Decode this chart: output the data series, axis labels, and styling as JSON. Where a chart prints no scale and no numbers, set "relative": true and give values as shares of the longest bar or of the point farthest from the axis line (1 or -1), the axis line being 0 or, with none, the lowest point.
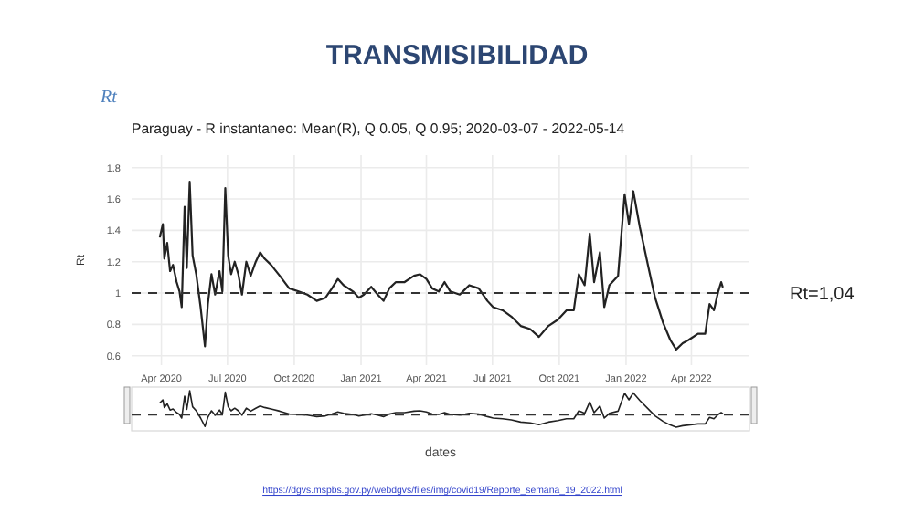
{
  "chart_data": [
    {
      "type": "line",
      "title": "TRANSMISIBILIDAD",
      "subtitle": "Paraguay - R instantaneo: Mean(R), Q 0.05, Q 0.95;  2020-03-07 - 2022-05-14",
      "xlabel": "dates",
      "ylabel": "Rt",
      "annotations": [
        "Rt",
        "Rt=1,04",
        "https://dgvs.mspbs.gov.py/webdgvs/files/img/covid19/Reporte_semana_19_2022.html"
      ],
      "xlim": [
        "2020-02-20",
        "2022-06-20"
      ],
      "ylim": [
        0.54,
        1.88
      ],
      "xticks": [
        {
          "value": "2020-04-01",
          "label": "Apr 2020"
        },
        {
          "value": "2020-07-01",
          "label": "Jul 2020"
        },
        {
          "value": "2020-10-01",
          "label": "Oct 2020"
        },
        {
          "value": "2021-01-01",
          "label": "Jan 2021"
        },
        {
          "value": "2021-04-01",
          "label": "Apr 2021"
        },
        {
          "value": "2021-07-01",
          "label": "Jul 2021"
        },
        {
          "value": "2021-10-01",
          "label": "Oct 2021"
        },
        {
          "value": "2022-01-01",
          "label": "Jan 2022"
        },
        {
          "value": "2022-04-01",
          "label": "Apr 2022"
        }
      ],
      "yticks": [
        0.6,
        0.8,
        {
          "value": 1,
          "label": "1"
        },
        1.2,
        1.4,
        1.6,
        1.8
      ],
      "grid": true,
      "marker": "none",
      "line_style": "solid",
      "ref_lines": [
        {
          "axis": "y",
          "value": 1,
          "color": "#333333",
          "line_style": "dashed"
        }
      ],
      "series": [
        {
          "color": "#222222",
          "x": [
            "2020-03-30",
            "2020-04-03",
            "2020-04-05",
            "2020-04-09",
            "2020-04-13",
            "2020-04-17",
            "2020-04-22",
            "2020-04-26",
            "2020-04-29",
            "2020-05-03",
            "2020-05-06",
            "2020-05-10",
            "2020-05-14",
            "2020-05-19",
            "2020-05-25",
            "2020-05-31",
            "2020-06-04",
            "2020-06-09",
            "2020-06-14",
            "2020-06-20",
            "2020-06-24",
            "2020-06-28",
            "2020-07-02",
            "2020-07-06",
            "2020-07-11",
            "2020-07-16",
            "2020-07-21",
            "2020-07-27",
            "2020-08-02",
            "2020-08-09",
            "2020-08-15",
            "2020-08-21",
            "2020-08-30",
            "2020-09-11",
            "2020-09-24",
            "2020-10-07",
            "2020-10-19",
            "2020-11-01",
            "2020-11-13",
            "2020-11-22",
            "2020-11-30",
            "2020-12-08",
            "2020-12-21",
            "2020-12-29",
            "2021-01-05",
            "2021-01-15",
            "2021-01-24",
            "2021-02-01",
            "2021-02-09",
            "2021-02-18",
            "2021-03-02",
            "2021-03-15",
            "2021-03-23",
            "2021-04-01",
            "2021-04-09",
            "2021-04-18",
            "2021-04-26",
            "2021-05-04",
            "2021-05-17",
            "2021-05-30",
            "2021-06-12",
            "2021-06-24",
            "2021-07-02",
            "2021-07-15",
            "2021-07-27",
            "2021-08-09",
            "2021-08-22",
            "2021-09-03",
            "2021-09-16",
            "2021-09-29",
            "2021-10-11",
            "2021-10-21",
            "2021-10-28",
            "2021-11-05",
            "2021-11-12",
            "2021-11-18",
            "2021-11-26",
            "2021-12-02",
            "2021-12-09",
            "2021-12-21",
            "2021-12-30",
            "2022-01-05",
            "2022-01-11",
            "2022-01-20",
            "2022-02-01",
            "2022-02-10",
            "2022-02-21",
            "2022-03-03",
            "2022-03-11",
            "2022-03-20",
            "2022-03-28",
            "2022-04-10",
            "2022-04-20",
            "2022-04-26",
            "2022-05-02",
            "2022-05-08",
            "2022-05-12",
            "2022-05-14"
          ],
          "values": [
            1.36,
            1.44,
            1.22,
            1.32,
            1.14,
            1.18,
            1.07,
            1.01,
            0.91,
            1.55,
            1.16,
            1.71,
            1.24,
            1.12,
            0.91,
            0.66,
            0.93,
            1.12,
            0.99,
            1.14,
            1.01,
            1.67,
            1.24,
            1.12,
            1.2,
            1.12,
            0.99,
            1.2,
            1.11,
            1.2,
            1.26,
            1.22,
            1.18,
            1.11,
            1.03,
            1.01,
            0.99,
            0.95,
            0.97,
            1.03,
            1.09,
            1.05,
            1.01,
            0.97,
            0.99,
            1.04,
            0.99,
            0.95,
            1.03,
            1.07,
            1.07,
            1.11,
            1.12,
            1.09,
            1.03,
            1.01,
            1.07,
            1.01,
            0.99,
            1.05,
            1.03,
            0.95,
            0.91,
            0.89,
            0.85,
            0.79,
            0.77,
            0.72,
            0.79,
            0.83,
            0.89,
            0.89,
            1.12,
            1.05,
            1.38,
            1.07,
            1.26,
            0.91,
            1.05,
            1.11,
            1.63,
            1.44,
            1.65,
            1.42,
            1.16,
            0.97,
            0.81,
            0.7,
            0.64,
            0.68,
            0.7,
            0.74,
            0.74,
            0.93,
            0.89,
            1.01,
            1.07,
            1.04
          ]
        }
      ]
    },
    {
      "type": "line",
      "relative": true,
      "xlim": [
        "2020-02-20",
        "2022-06-20"
      ],
      "line_style": "solid",
      "ref_lines": [
        {
          "axis": "y",
          "value": 0.34,
          "color": "#333333",
          "line_style": "dashed"
        }
      ],
      "series": [
        {
          "color": "#222222",
          "x": [
            "2020-03-30",
            "2020-04-03",
            "2020-04-05",
            "2020-04-09",
            "2020-04-13",
            "2020-04-17",
            "2020-04-22",
            "2020-04-26",
            "2020-04-29",
            "2020-05-03",
            "2020-05-06",
            "2020-05-10",
            "2020-05-14",
            "2020-05-19",
            "2020-05-25",
            "2020-05-31",
            "2020-06-04",
            "2020-06-09",
            "2020-06-14",
            "2020-06-20",
            "2020-06-24",
            "2020-06-28",
            "2020-07-02",
            "2020-07-06",
            "2020-07-11",
            "2020-07-16",
            "2020-07-21",
            "2020-07-27",
            "2020-08-02",
            "2020-08-09",
            "2020-08-15",
            "2020-08-21",
            "2020-08-30",
            "2020-09-11",
            "2020-09-24",
            "2020-10-07",
            "2020-10-19",
            "2020-11-01",
            "2020-11-13",
            "2020-11-22",
            "2020-11-30",
            "2020-12-08",
            "2020-12-21",
            "2020-12-29",
            "2021-01-05",
            "2021-01-15",
            "2021-01-24",
            "2021-02-01",
            "2021-02-09",
            "2021-02-18",
            "2021-03-02",
            "2021-03-15",
            "2021-03-23",
            "2021-04-01",
            "2021-04-09",
            "2021-04-18",
            "2021-04-26",
            "2021-05-04",
            "2021-05-17",
            "2021-05-30",
            "2021-06-12",
            "2021-06-24",
            "2021-07-02",
            "2021-07-15",
            "2021-07-27",
            "2021-08-09",
            "2021-08-22",
            "2021-09-03",
            "2021-09-16",
            "2021-09-29",
            "2021-10-11",
            "2021-10-21",
            "2021-10-28",
            "2021-11-05",
            "2021-11-12",
            "2021-11-18",
            "2021-11-26",
            "2021-12-02",
            "2021-12-09",
            "2021-12-21",
            "2021-12-30",
            "2022-01-05",
            "2022-01-11",
            "2022-01-20",
            "2022-02-01",
            "2022-02-10",
            "2022-02-21",
            "2022-03-03",
            "2022-03-11",
            "2022-03-20",
            "2022-03-28",
            "2022-04-10",
            "2022-04-20",
            "2022-04-26",
            "2022-05-02",
            "2022-05-08",
            "2022-05-12",
            "2022-05-14"
          ],
          "values": [
            0.67,
            0.75,
            0.54,
            0.64,
            0.47,
            0.5,
            0.4,
            0.35,
            0.25,
            0.85,
            0.49,
            1,
            0.56,
            0.45,
            0.25,
            0.02,
            0.27,
            0.45,
            0.33,
            0.47,
            0.35,
            0.96,
            0.56,
            0.45,
            0.52,
            0.45,
            0.33,
            0.52,
            0.44,
            0.52,
            0.58,
            0.54,
            0.5,
            0.44,
            0.36,
            0.35,
            0.33,
            0.29,
            0.31,
            0.36,
            0.42,
            0.38,
            0.35,
            0.31,
            0.33,
            0.37,
            0.33,
            0.29,
            0.36,
            0.4,
            0.4,
            0.44,
            0.45,
            0.42,
            0.36,
            0.35,
            0.4,
            0.35,
            0.33,
            0.38,
            0.36,
            0.29,
            0.25,
            0.23,
            0.2,
            0.14,
            0.12,
            0.07,
            0.14,
            0.18,
            0.23,
            0.23,
            0.45,
            0.38,
            0.69,
            0.4,
            0.58,
            0.25,
            0.38,
            0.44,
            0.93,
            0.75,
            0.94,
            0.73,
            0.49,
            0.31,
            0.16,
            0.06,
            0,
            0.04,
            0.06,
            0.09,
            0.09,
            0.27,
            0.23,
            0.35,
            0.4,
            0.37
          ]
        }
      ]
    }
  ]
}
